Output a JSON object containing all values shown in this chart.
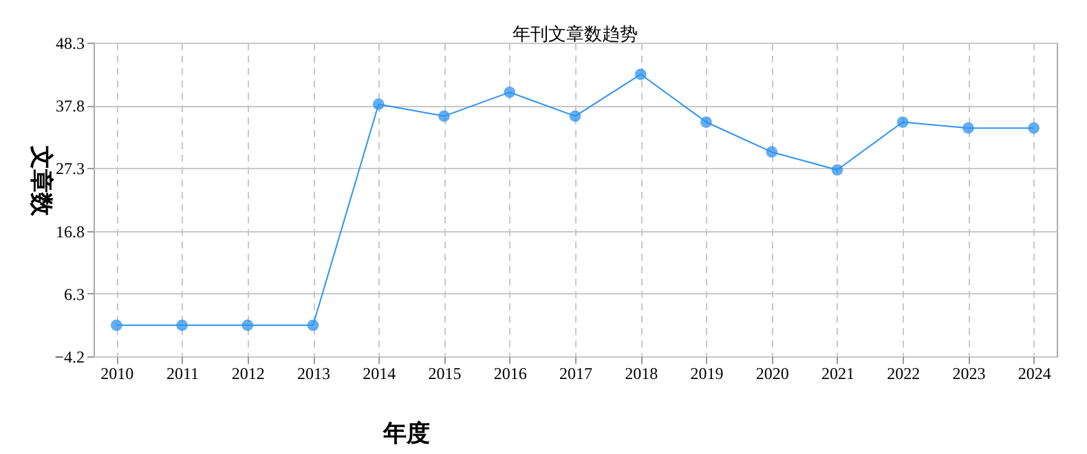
{
  "chart_data": {
    "type": "line",
    "title": "年刊文章数趋势",
    "xlabel": "年度",
    "ylabel": "文章数",
    "categories": [
      "2010",
      "2011",
      "2012",
      "2013",
      "2014",
      "2015",
      "2016",
      "2017",
      "2018",
      "2019",
      "2020",
      "2021",
      "2022",
      "2023",
      "2024"
    ],
    "series": [
      {
        "color": "#2e93f0",
        "values": [
          1,
          1,
          1,
          1,
          38,
          36,
          40,
          36,
          43,
          35,
          30,
          27,
          35,
          34,
          34
        ]
      }
    ],
    "ylim": [
      -4.2,
      48.3
    ],
    "yticks": [
      -4.2,
      6.3,
      16.8,
      27.3,
      37.8,
      48.3
    ],
    "grid": true,
    "marker": "circle",
    "line_style": "solid"
  }
}
